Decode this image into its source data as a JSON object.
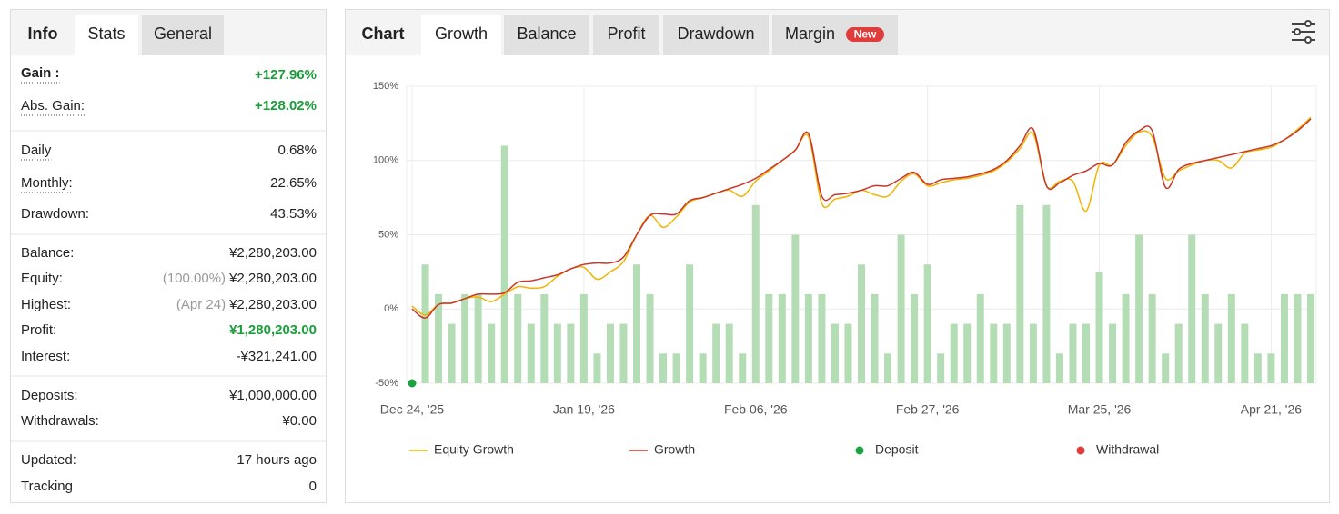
{
  "stats": {
    "tabs": [
      "Info",
      "Stats",
      "General"
    ],
    "groups": [
      [
        {
          "label": "Gain :",
          "value": "+127.96%",
          "color": "#1a9e3a",
          "bold": true,
          "dotted": true
        },
        {
          "label": "Abs. Gain:",
          "value": "+128.02%",
          "color": "#1a9e3a",
          "dotted": true
        }
      ],
      [
        {
          "label": "Daily",
          "value": "0.68%",
          "dotted": true
        },
        {
          "label": "Monthly:",
          "value": "22.65%",
          "dotted": true
        },
        {
          "label": "Drawdown:",
          "value": "43.53%"
        }
      ],
      [
        {
          "label": "Balance:",
          "value": "¥2,280,203.00"
        },
        {
          "label": "Equity:",
          "note": "(100.00%)",
          "value": "¥2,280,203.00"
        },
        {
          "label": "Highest:",
          "note": "(Apr 24)",
          "value": "¥2,280,203.00"
        },
        {
          "label": "Profit:",
          "value": "¥1,280,203.00",
          "color": "#1a9e3a"
        },
        {
          "label": "Interest:",
          "value": "-¥321,241.00"
        }
      ],
      [
        {
          "label": "Deposits:",
          "value": "¥1,000,000.00"
        },
        {
          "label": "Withdrawals:",
          "value": "¥0.00"
        }
      ],
      [
        {
          "label": "Updated:",
          "value": "17 hours ago"
        },
        {
          "label": "Tracking",
          "value": "0"
        }
      ]
    ]
  },
  "chart_tabs": {
    "title": "Chart",
    "tabs": [
      "Growth",
      "Balance",
      "Profit",
      "Drawdown",
      "Margin"
    ],
    "badge": "New"
  },
  "chart_data": {
    "type": "line",
    "categories": [
      "Dec 24, '25",
      null,
      null,
      null,
      null,
      null,
      null,
      null,
      null,
      null,
      null,
      null,
      null,
      "Jan 19, '26",
      null,
      null,
      null,
      null,
      null,
      null,
      null,
      null,
      null,
      null,
      null,
      null,
      "Feb 06, '26",
      null,
      null,
      null,
      null,
      null,
      null,
      null,
      null,
      null,
      null,
      null,
      null,
      "Feb 27, '26",
      null,
      null,
      null,
      null,
      null,
      null,
      null,
      null,
      null,
      null,
      null,
      null,
      "Mar 25, '26",
      null,
      null,
      null,
      null,
      null,
      null,
      null,
      null,
      null,
      null,
      null,
      null,
      "Apr 21, '26",
      null,
      null,
      null
    ],
    "series": [
      {
        "name": "Equity Growth",
        "color": "#f0b400",
        "style": "line",
        "values": [
          2,
          -4,
          3,
          4,
          7,
          8,
          5,
          10,
          15,
          14,
          15,
          22,
          27,
          28,
          20,
          25,
          32,
          50,
          63,
          55,
          62,
          72,
          75,
          78,
          80,
          76,
          86,
          93,
          100,
          107,
          116,
          71,
          74,
          76,
          80,
          77,
          76,
          86,
          91,
          83,
          85,
          87,
          88,
          90,
          93,
          99,
          108,
          118,
          83,
          86,
          86,
          66,
          97,
          97,
          110,
          119,
          116,
          88,
          93,
          97,
          100,
          100,
          95,
          105,
          107,
          109,
          114,
          121,
          129
        ]
      },
      {
        "name": "Growth",
        "color": "#c8362a",
        "style": "line",
        "values": [
          0,
          -6,
          3,
          4,
          7,
          10,
          10,
          11,
          18,
          19,
          21,
          23,
          27,
          30,
          31,
          31,
          35,
          50,
          63,
          64,
          64,
          73,
          75,
          78,
          81,
          84,
          88,
          94,
          100,
          107,
          118,
          76,
          77,
          78,
          80,
          83,
          83,
          88,
          92,
          84,
          87,
          88,
          89,
          91,
          94,
          100,
          110,
          121,
          83,
          85,
          90,
          93,
          98,
          97,
          112,
          120,
          120,
          82,
          94,
          98,
          100,
          102,
          104,
          106,
          108,
          110,
          114,
          120,
          128
        ]
      },
      {
        "name": "Deposit",
        "color": "#1aa340",
        "style": "point",
        "values": [
          -50,
          null,
          null,
          null,
          null,
          null,
          null,
          null,
          null,
          null,
          null,
          null,
          null,
          null,
          null,
          null,
          null,
          null,
          null,
          null,
          null,
          null,
          null,
          null,
          null,
          null,
          null,
          null,
          null,
          null,
          null,
          null,
          null,
          null,
          null,
          null,
          null,
          null,
          null,
          null,
          null,
          null,
          null,
          null,
          null,
          null,
          null,
          null,
          null,
          null,
          null,
          null,
          null,
          null,
          null,
          null,
          null,
          null,
          null,
          null,
          null,
          null,
          null,
          null,
          null,
          null,
          null,
          null,
          null
        ]
      },
      {
        "name": "Withdrawal",
        "color": "#e03c3c",
        "style": "point",
        "values": [
          null,
          null,
          null,
          null,
          null,
          null,
          null,
          null,
          null,
          null,
          null,
          null,
          null,
          null,
          null,
          null,
          null,
          null,
          null,
          null,
          null,
          null,
          null,
          null,
          null,
          null,
          null,
          null,
          null,
          null,
          null,
          null,
          null,
          null,
          null,
          null,
          null,
          null,
          null,
          null,
          null,
          null,
          null,
          null,
          null,
          null,
          null,
          null,
          null,
          null,
          null,
          null,
          null,
          null,
          null,
          null,
          null,
          null,
          null,
          null,
          null,
          null,
          null,
          null,
          null,
          null,
          null,
          null,
          null
        ]
      }
    ],
    "bars": {
      "color": "#b5ddb5",
      "values": [
        null,
        30,
        10,
        -10,
        10,
        10,
        -10,
        110,
        10,
        -10,
        10,
        -10,
        -10,
        10,
        -30,
        -10,
        -10,
        30,
        10,
        -30,
        -30,
        30,
        -30,
        -10,
        -10,
        -30,
        70,
        10,
        10,
        50,
        10,
        10,
        -10,
        -10,
        30,
        10,
        -30,
        50,
        10,
        30,
        -30,
        -10,
        -10,
        10,
        -10,
        -10,
        70,
        -10,
        70,
        -30,
        -10,
        -10,
        25,
        -10,
        10,
        50,
        10,
        -30,
        -10,
        50,
        10,
        -10,
        10,
        -10,
        -30,
        -30,
        10,
        10,
        10
      ]
    },
    "ylim": [
      -50,
      150
    ],
    "yticks": [
      {
        "value": -50,
        "label": "-50%"
      },
      {
        "value": 0,
        "label": "0%"
      },
      {
        "value": 50,
        "label": "50%"
      },
      {
        "value": 100,
        "label": "100%"
      },
      {
        "value": 150,
        "label": "150%"
      }
    ],
    "grid": true
  }
}
